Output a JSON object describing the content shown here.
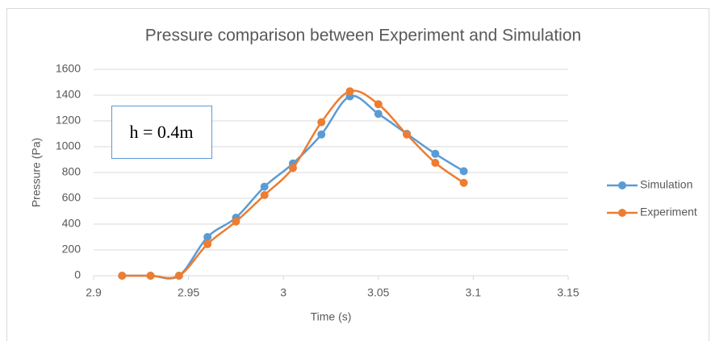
{
  "chart_data": {
    "type": "line",
    "smooth": true,
    "title": "Pressure comparison between Experiment and Simulation",
    "x_label": "Time (s)",
    "y_label": "Pressure (Pa)",
    "annotation": "h = 0.4m",
    "x": [
      2.915,
      2.93,
      2.945,
      2.96,
      2.975,
      2.99,
      3.005,
      3.02,
      3.035,
      3.05,
      3.065,
      3.08,
      3.095
    ],
    "series": [
      {
        "name": "Simulation",
        "color": "#5b9bd5",
        "values": [
          0,
          0,
          0,
          300,
          450,
          690,
          870,
          1095,
          1390,
          1255,
          1100,
          945,
          810
        ]
      },
      {
        "name": "Experiment",
        "color": "#ed7d31",
        "values": [
          0,
          0,
          0,
          245,
          420,
          625,
          835,
          1190,
          1430,
          1330,
          1095,
          875,
          720
        ]
      }
    ],
    "xlim": [
      2.9,
      3.15
    ],
    "xticks": [
      2.9,
      2.95,
      3,
      3.05,
      3.1,
      3.15
    ],
    "ylim": [
      0,
      1600
    ],
    "yticks": [
      0,
      200,
      400,
      600,
      800,
      1000,
      1200,
      1400,
      1600
    ],
    "grid": true,
    "legend": "right"
  }
}
